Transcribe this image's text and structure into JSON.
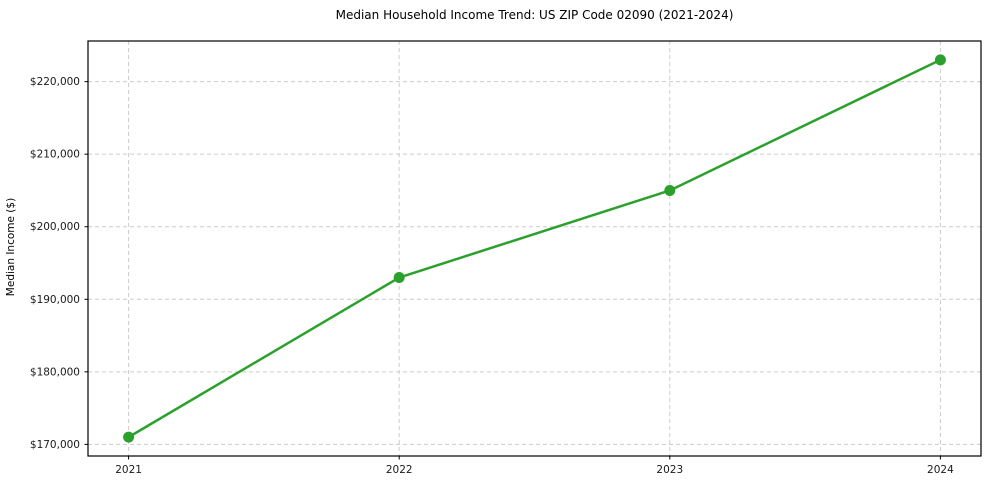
{
  "chart_data": {
    "type": "line",
    "title": "Median Household Income Trend: US ZIP Code 02090 (2021-2024)",
    "xlabel": "",
    "ylabel": "Median Income ($)",
    "x": [
      2021,
      2022,
      2023,
      2024
    ],
    "x_tick_labels": [
      "2021",
      "2022",
      "2023",
      "2024"
    ],
    "series": [
      {
        "name": "Median Household Income",
        "values": [
          171000,
          193000,
          205000,
          223000
        ]
      }
    ],
    "y_ticks": [
      {
        "value": 170000,
        "label": "$170,000"
      },
      {
        "value": 180000,
        "label": "$180,000"
      },
      {
        "value": 190000,
        "label": "$190,000"
      },
      {
        "value": 200000,
        "label": "$200,000"
      },
      {
        "value": 210000,
        "label": "$210,000"
      },
      {
        "value": 220000,
        "label": "$220,000"
      }
    ],
    "xlim": [
      2020.85,
      2024.15
    ],
    "ylim": [
      168400,
      225600
    ],
    "grid": true,
    "legend_position": "none",
    "colors": {
      "line": "#2ca02c",
      "marker": "#2ca02c",
      "grid": "#cccccc",
      "border": "#000000",
      "background": "#ffffff"
    },
    "line_width": 2.5,
    "marker_radius": 5.5
  }
}
